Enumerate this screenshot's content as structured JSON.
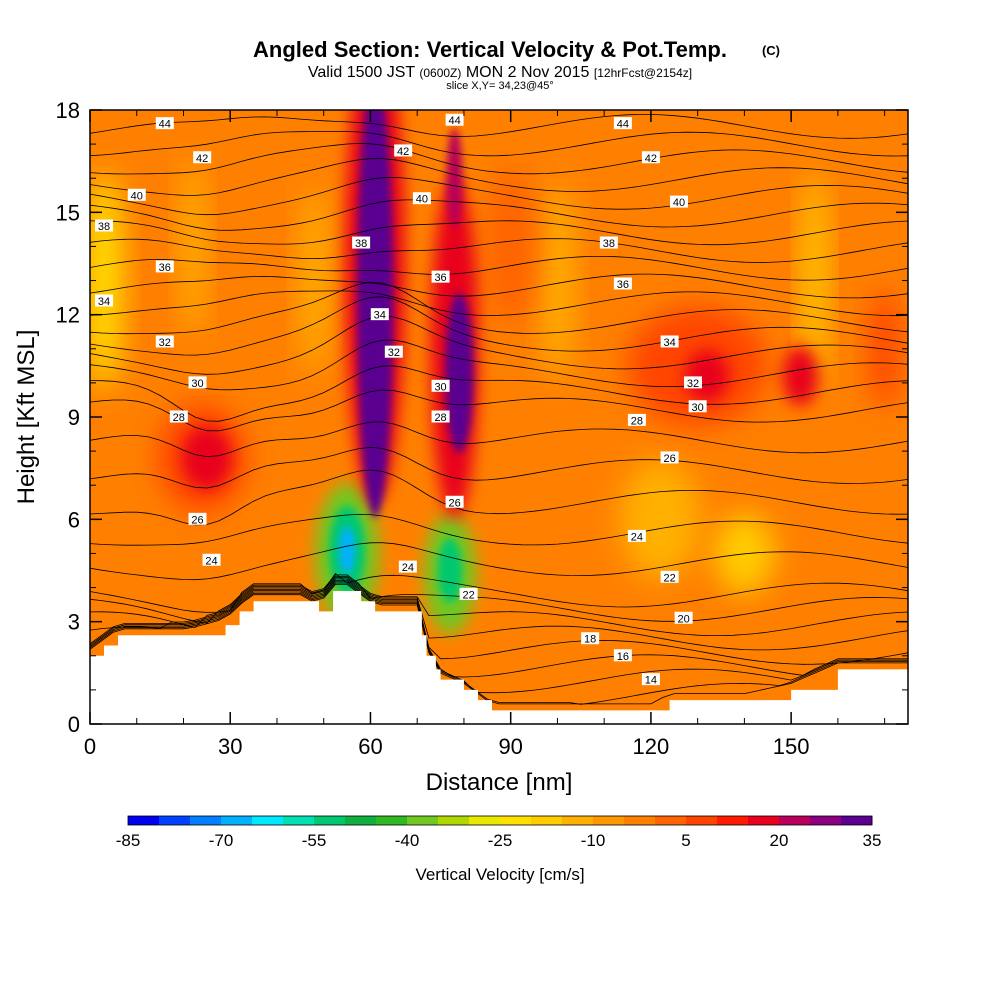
{
  "chart_data": {
    "type": "heatmap",
    "title": "Angled Section: Vertical Velocity & Pot.Temp.",
    "title_unit": "(C)",
    "subtitle_prefix": "Valid 1500 JST",
    "subtitle_zulu": "(0600Z)",
    "subtitle_date": "MON 2 Nov 2015",
    "subtitle_fcst": "[12hrFcst@2154z]",
    "slice_label": "slice X,Y= 34,23@45°",
    "xlabel": "Distance [nm]",
    "ylabel": "Height [Kft MSL]",
    "xlim": [
      0,
      175
    ],
    "ylim": [
      0,
      18
    ],
    "x_ticks": [
      "0",
      "30",
      "60",
      "90",
      "120",
      "150"
    ],
    "x_tick_values": [
      0,
      30,
      60,
      90,
      120,
      150
    ],
    "y_ticks": [
      "0",
      "3",
      "6",
      "9",
      "12",
      "15",
      "18"
    ],
    "y_tick_values": [
      0,
      3,
      6,
      9,
      12,
      15,
      18
    ],
    "colorbar": {
      "label": "Vertical Velocity [cm/s]",
      "tick_labels": [
        "-85",
        "-70",
        "-55",
        "-40",
        "-25",
        "-10",
        "5",
        "20",
        "35"
      ],
      "colors": [
        "#0000ee",
        "#0040ff",
        "#0080ff",
        "#00b0ff",
        "#00e8ff",
        "#00e0b0",
        "#00c870",
        "#10b040",
        "#30b820",
        "#70c820",
        "#b0d800",
        "#e8e800",
        "#ffe000",
        "#ffcc00",
        "#ffb000",
        "#ff9800",
        "#ff8000",
        "#ff6400",
        "#ff4400",
        "#ff1a00",
        "#e8001e",
        "#b8005a",
        "#8a0080",
        "#5a0090"
      ]
    },
    "terrain_profile": {
      "x": [
        0,
        3,
        6,
        21,
        29,
        32,
        35,
        38,
        45,
        49,
        52,
        55,
        58,
        61,
        64,
        70,
        71,
        72,
        74,
        75,
        80,
        83,
        86,
        90,
        95,
        100,
        105,
        110,
        115,
        120,
        124,
        130,
        140,
        150,
        160,
        170,
        175
      ],
      "h": [
        2.0,
        2.3,
        2.6,
        2.6,
        2.9,
        3.3,
        3.6,
        3.6,
        3.6,
        3.3,
        3.9,
        3.9,
        3.6,
        3.3,
        3.3,
        3.3,
        2.6,
        2.0,
        1.6,
        1.3,
        1.0,
        0.7,
        0.4,
        0.4,
        0.4,
        0.4,
        0.4,
        0.4,
        0.4,
        0.4,
        0.7,
        0.7,
        0.7,
        1.0,
        1.6,
        1.6,
        1.6
      ]
    },
    "velocity_features": [
      {
        "type": "updraft",
        "x": 60,
        "y": 15.5,
        "value": 35
      },
      {
        "type": "updraft",
        "x": 78,
        "y": 10.5,
        "value": 35
      },
      {
        "type": "downdraft",
        "x": 55,
        "y": 5.1,
        "value": -70
      },
      {
        "type": "downdraft",
        "x": 77,
        "y": 4.5,
        "value": -55
      },
      {
        "type": "ascent",
        "x": 25,
        "y": 7.8,
        "value": 15
      },
      {
        "type": "ascent",
        "x": 142,
        "y": 10.2,
        "value": 15
      }
    ],
    "isentrope_values": [
      14,
      15,
      16,
      17,
      18,
      19,
      20,
      21,
      22,
      23,
      24,
      25,
      26,
      27,
      28,
      29,
      30,
      31,
      32,
      33,
      34,
      35,
      36,
      37,
      38,
      39,
      40,
      41,
      42,
      43,
      44
    ],
    "isentrope_labels": [
      {
        "text": "44",
        "x": 16,
        "y": 17.6
      },
      {
        "text": "44",
        "x": 78,
        "y": 17.7
      },
      {
        "text": "44",
        "x": 114,
        "y": 17.6
      },
      {
        "text": "42",
        "x": 24,
        "y": 16.6
      },
      {
        "text": "42",
        "x": 67,
        "y": 16.8
      },
      {
        "text": "42",
        "x": 120,
        "y": 16.6
      },
      {
        "text": "40",
        "x": 10,
        "y": 15.5
      },
      {
        "text": "40",
        "x": 71,
        "y": 15.4
      },
      {
        "text": "40",
        "x": 126,
        "y": 15.3
      },
      {
        "text": "38",
        "x": 3,
        "y": 14.6
      },
      {
        "text": "38",
        "x": 58,
        "y": 14.1
      },
      {
        "text": "38",
        "x": 111,
        "y": 14.1
      },
      {
        "text": "36",
        "x": 16,
        "y": 13.4
      },
      {
        "text": "36",
        "x": 75,
        "y": 13.1
      },
      {
        "text": "36",
        "x": 114,
        "y": 12.9
      },
      {
        "text": "34",
        "x": 3,
        "y": 12.4
      },
      {
        "text": "34",
        "x": 62,
        "y": 12.0
      },
      {
        "text": "34",
        "x": 124,
        "y": 11.2
      },
      {
        "text": "32",
        "x": 16,
        "y": 11.2
      },
      {
        "text": "32",
        "x": 65,
        "y": 10.9
      },
      {
        "text": "32",
        "x": 129,
        "y": 10.0
      },
      {
        "text": "30",
        "x": 23,
        "y": 10.0
      },
      {
        "text": "30",
        "x": 75,
        "y": 9.9
      },
      {
        "text": "30",
        "x": 130,
        "y": 9.3
      },
      {
        "text": "28",
        "x": 19,
        "y": 9.0
      },
      {
        "text": "28",
        "x": 75,
        "y": 9.0
      },
      {
        "text": "28",
        "x": 117,
        "y": 8.9
      },
      {
        "text": "26",
        "x": 23,
        "y": 6.0
      },
      {
        "text": "26",
        "x": 78,
        "y": 6.5
      },
      {
        "text": "26",
        "x": 124,
        "y": 7.8
      },
      {
        "text": "24",
        "x": 26,
        "y": 4.8
      },
      {
        "text": "24",
        "x": 68,
        "y": 4.6
      },
      {
        "text": "24",
        "x": 117,
        "y": 5.5
      },
      {
        "text": "22",
        "x": 81,
        "y": 3.8
      },
      {
        "text": "22",
        "x": 124,
        "y": 4.3
      },
      {
        "text": "20",
        "x": 127,
        "y": 3.1
      },
      {
        "text": "18",
        "x": 107,
        "y": 2.5
      },
      {
        "text": "16",
        "x": 114,
        "y": 2.0
      },
      {
        "text": "14",
        "x": 120,
        "y": 1.3
      }
    ]
  }
}
